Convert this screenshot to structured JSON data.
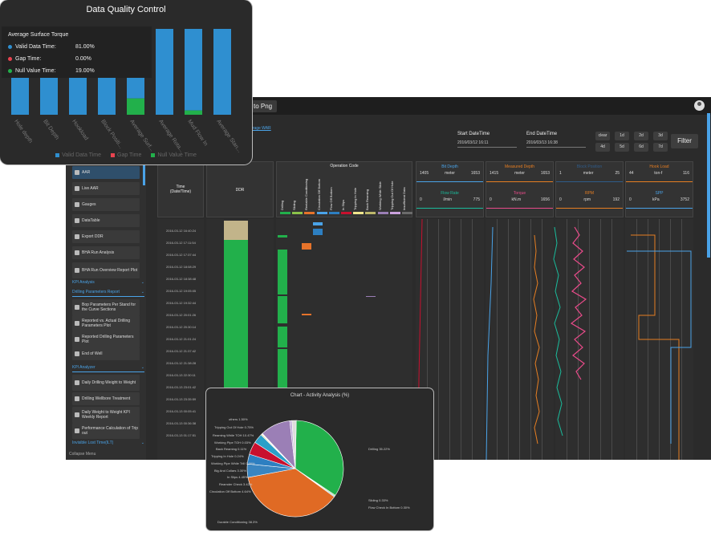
{
  "topbar": {
    "export_label": "to Png"
  },
  "filters": {
    "link_text": "erage WAR",
    "start_label": "Start DateTime",
    "start_value": "2016/03/12 16:11",
    "end_label": "End DateTime",
    "end_value": "2016/03/13 16:38",
    "range_buttons": [
      "clear",
      "1d",
      "2d",
      "3d",
      "4d",
      "5d",
      "6d",
      "7d"
    ],
    "filter_label": "Filter"
  },
  "sidebar": {
    "items": [
      "AAR",
      "Live AAR",
      "Gauges",
      "DataTable",
      "Export DDR",
      "BHA Run Analysis",
      "BHA Run Overview Report Plot"
    ],
    "kpi_section": "KPI Analysis",
    "drilling_params_section": "Drilling Parameters Report",
    "drilling_items": [
      "Bop Parameters Per Stand for the Curve Sections",
      "Reported vs. Actual Drilling Parameters Plot",
      "Reported Drilling Parameters Plot",
      "End of Well"
    ],
    "kpi_analyzer_section": "KPI Analyzer",
    "analyzer_items": [
      "Daily Drilling Weight to Weight",
      "Drilling Wellbore Treatment",
      "Daily Weight to Weight KPI Weekly Report",
      "Performance Calculation of Trip out"
    ],
    "invisible_section": "Invisible Lost Time(ILT)",
    "collapse_label": "Collapse Menu"
  },
  "headers": {
    "time": "Time\n(Date/Time)",
    "ddr": "DDR",
    "operation_code": "Operation Code",
    "op_codes": [
      "Drilling",
      "Sliding",
      "Reelable Conditioning",
      "Circulation Off Bottom",
      "Flow Off Bottom",
      "In Slips",
      "Tripping In Hole",
      "Back Reaming",
      "Working While Slide",
      "Tripping Out Of Hole",
      "Insufficient Data"
    ],
    "op_colors": [
      "#22b04b",
      "#8bc34a",
      "#e6732a",
      "#4aa3e8",
      "#2d7fc1",
      "#c8102e",
      "#f0e68c",
      "#bdb76b",
      "#9b7fb6",
      "#c9a0dc",
      "#6b6b6b"
    ]
  },
  "tracks": [
    {
      "title": "Bit Depth",
      "min": "1405",
      "unit": "meter",
      "max": "1653",
      "color": "#4aa3e8"
    },
    {
      "title": "Measured Depth",
      "min": "1415",
      "unit": "meter",
      "max": "1653",
      "color": "#e67e22"
    },
    {
      "title": "Block Position",
      "min": "1",
      "unit": "meter",
      "max": "25",
      "color": "#2f5c8a"
    },
    {
      "title": "Hook Load",
      "min": "44",
      "unit": "ton-f",
      "max": "116",
      "color": "#e67e22"
    },
    {
      "title": "Flow Rate",
      "min": "0",
      "unit": "l/min",
      "max": "775",
      "color": "#1abc9c"
    },
    {
      "title": "Torque",
      "min": "0",
      "unit": "kN.m",
      "max": "1656",
      "color": "#e94b8a"
    },
    {
      "title": "RPM",
      "min": "0",
      "unit": "rpm",
      "max": "192",
      "color": "#e67e22"
    },
    {
      "title": "SPP",
      "min": "0",
      "unit": "kPa",
      "max": "3752",
      "color": "#4aa3e8"
    }
  ],
  "time_rows": [
    "2016-03-12 16:40:24",
    "2016-03-12 17:11:54",
    "2016-03-12 17:37:44",
    "2016-03-12 18:08:29",
    "2016-03-12 18:38:48",
    "2016-03-12 19:05:05",
    "2016-03-12 19:32:44",
    "2016-03-12 20:01:26",
    "2016-03-12 20:30:14",
    "2016-03-12 21:01:24",
    "2016-03-12 21:37:42",
    "2016-03-12 21:38:28",
    "2016-03-13 22:30:11",
    "2016-03-13 23:01:42",
    "2016-03-13 23:35:59",
    "2016-03-13 00:05:41",
    "2016-03-13 00:36:38",
    "2016-03-13 01:17:51"
  ],
  "quality": {
    "title": "Data Quality Control",
    "tooltip_title": "Average Surface Torque",
    "tooltip_rows": [
      {
        "label": "Valid Data Time:",
        "value": "81.00%",
        "color": "#2f8fd0"
      },
      {
        "label": "Gap Time:",
        "value": "0.00%",
        "color": "#e8434f"
      },
      {
        "label": "Null Value Time:",
        "value": "19.00%",
        "color": "#22b04b"
      }
    ],
    "legend": [
      {
        "label": "Valid Data Time",
        "color": "#2f8fd0"
      },
      {
        "label": "Gap Time",
        "color": "#e8434f"
      },
      {
        "label": "Null Value Time",
        "color": "#22b04b"
      }
    ]
  },
  "chart_data": [
    {
      "type": "bar",
      "title": "Data Quality Control",
      "categories": [
        "Hole depth",
        "Bit Depth",
        "Hookload",
        "Block Positi...",
        "Average Surf...",
        "Average Rota...",
        "Mud Flow In",
        "Average Stan..."
      ],
      "series": [
        {
          "name": "Valid Data Time",
          "values": [
            100,
            100,
            100,
            100,
            81,
            100,
            95,
            100
          ]
        },
        {
          "name": "Gap Time",
          "values": [
            0,
            0,
            0,
            0,
            0,
            0,
            0,
            0
          ]
        },
        {
          "name": "Null Value Time",
          "values": [
            0,
            0,
            0,
            0,
            19,
            0,
            5,
            0
          ]
        }
      ],
      "ylim": [
        0,
        100
      ]
    },
    {
      "type": "pie",
      "title": "Chart - Activity Analysis (%)",
      "categories": [
        "Drilling",
        "Sliding",
        "Flow Check In Bottom",
        "Durable Conditioning",
        "Circulation Off Bottom",
        "Reamder Check",
        "In Slips",
        "Big And Collars",
        "Working Pipe While Trill",
        "Tripping In Hole",
        "Back Reaming",
        "Working Pipe TOH",
        "Reaming While TOH",
        "Tripping Out Of Hole",
        "others"
      ],
      "values": [
        35.22,
        0.33,
        0.3,
        38.3,
        4.64,
        3.42,
        4.45,
        3.3,
        0.3,
        0.24,
        0.11,
        0.03,
        10.47,
        0.75,
        1.5
      ],
      "labels": [
        "Drilling 35.22%",
        "Sliding 0.33%",
        "Flow Check In Bottom 0.30%",
        "Durable Conditioning 38.3%",
        "Circulation Off Bottom 4.64%",
        "Reamder Check 3.42%",
        "In Slips 4.45%",
        "Big And Collars 3.30%",
        "Working Pipe While Trill 0.30%",
        "Tripping In Hole 0.24%",
        "Back Reaming 0.11%",
        "Working Pipe TOH 0.03%",
        "Reaming While TOH 10.47%",
        "Tripping Out Of Hole 0.75%",
        "others 1.50%"
      ],
      "colors": [
        "#22b04b",
        "#8bc34a",
        "#4aa3e8",
        "#e06a24",
        "#3a85c0",
        "#2d7fc1",
        "#c8102e",
        "#2aa0c8",
        "#bdb76b",
        "#f0e68c",
        "#9bc",
        "#c9a0dc",
        "#9b7fb6",
        "#bca8d8",
        "#ddd"
      ]
    }
  ],
  "activity_title": "Chart - Activity Analysis (%)"
}
